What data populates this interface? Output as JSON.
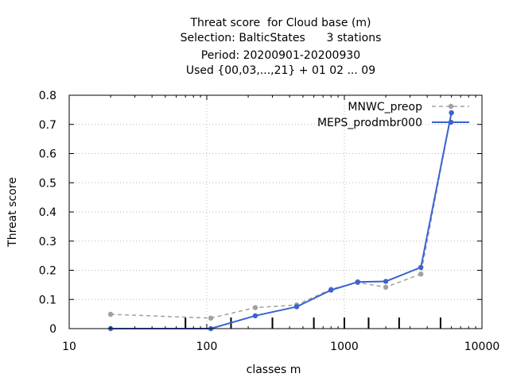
{
  "chart_data": {
    "type": "line",
    "title_lines": [
      "Threat score  for Cloud base (m)",
      "Selection: BalticStates      3 stations",
      "Period: 20200901-20200930",
      "Used {00,03,...,21} + 01 02 ... 09"
    ],
    "xlabel": "classes m",
    "ylabel": "Threat score",
    "xscale": "log",
    "xlim": [
      10,
      10000
    ],
    "ylim": [
      0,
      0.8
    ],
    "x_ticks": [
      "10",
      "100",
      "1000",
      "10000"
    ],
    "y_ticks": [
      "0",
      "0.1",
      "0.2",
      "0.3",
      "0.4",
      "0.5",
      "0.6",
      "0.7",
      "0.8"
    ],
    "grid": true,
    "legend_position": "top-right",
    "class_markers_x": [
      70,
      150,
      300,
      600,
      1000,
      1500,
      2500,
      5000
    ],
    "series": [
      {
        "name": "MNWC_preop",
        "color": "#a0a0a0",
        "style": "dashed",
        "x": [
          20,
          107,
          225,
          450,
          800,
          1250,
          2000,
          3600,
          6000
        ],
        "y": [
          0.049,
          0.036,
          0.072,
          0.081,
          0.135,
          0.158,
          0.142,
          0.187,
          0.74
        ]
      },
      {
        "name": "MEPS_prodmbr000",
        "color": "#3a63d0",
        "style": "solid",
        "x": [
          20,
          107,
          225,
          450,
          800,
          1250,
          2000,
          3600,
          6000
        ],
        "y": [
          0.0,
          0.0,
          0.044,
          0.075,
          0.132,
          0.16,
          0.162,
          0.21,
          0.74
        ]
      }
    ]
  }
}
